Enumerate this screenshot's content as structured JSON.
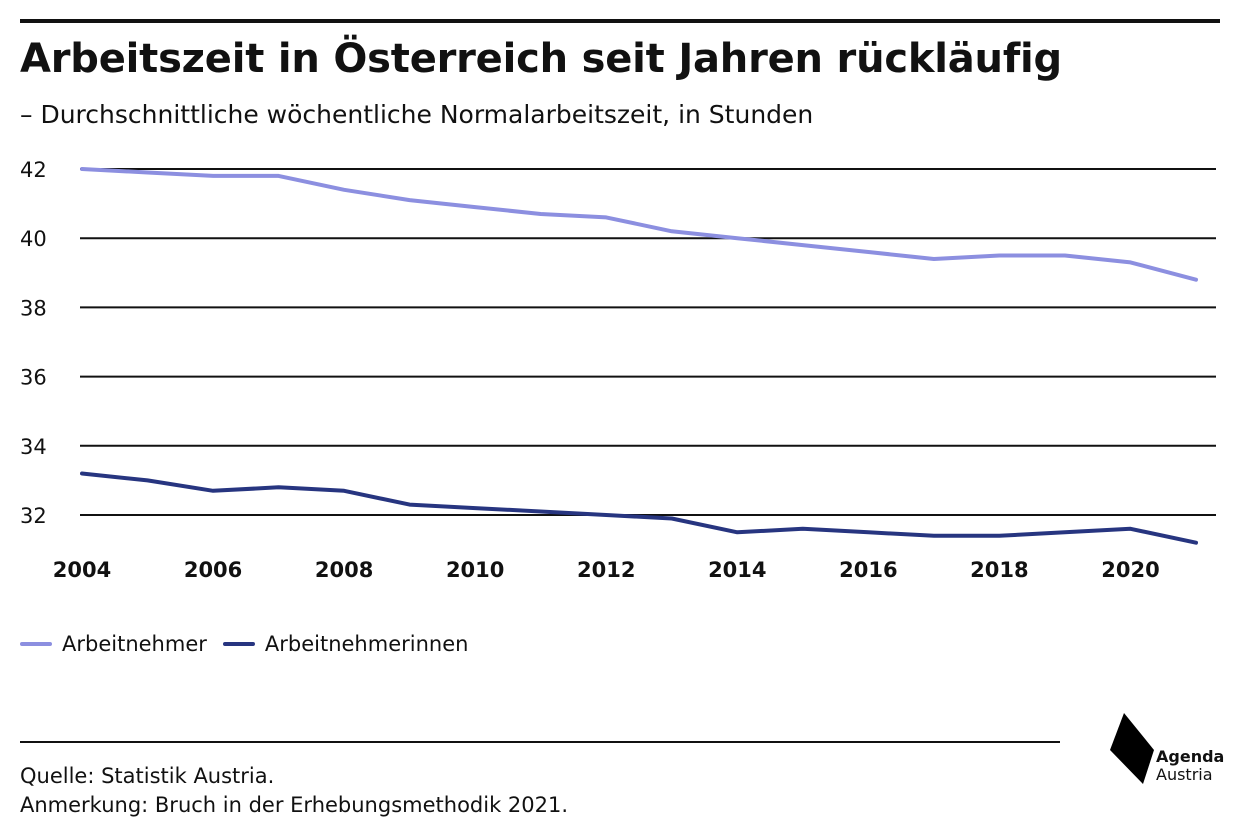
{
  "header": {
    "title": "Arbeitszeit in Österreich seit Jahren rückläufig",
    "subtitle": "– Durchschnittliche wöchentliche Normalarbeitszeit, in Stunden"
  },
  "footer": {
    "source": "Quelle: Statistik Austria.",
    "note": "Anmerkung: Bruch in der Erhebungsmethodik 2021.",
    "logo_line1": "Agenda",
    "logo_line2": "Austria"
  },
  "colors": {
    "accent_light": "#8c8fe0",
    "accent_dark": "#273580",
    "gridline": "#111111",
    "logo": "#000000"
  },
  "chart_data": {
    "type": "line",
    "title": "Arbeitszeit in Österreich seit Jahren rückläufig",
    "subtitle": "– Durchschnittliche wöchentliche Normalarbeitszeit, in Stunden",
    "xlabel": "",
    "ylabel": "",
    "x": [
      2004,
      2005,
      2006,
      2007,
      2008,
      2009,
      2010,
      2011,
      2012,
      2013,
      2014,
      2015,
      2016,
      2017,
      2018,
      2019,
      2020,
      2021
    ],
    "xticks": [
      "2004",
      "2006",
      "2008",
      "2010",
      "2012",
      "2014",
      "2016",
      "2018",
      "2020"
    ],
    "xlim": [
      2004,
      2021
    ],
    "yticks": [
      "32",
      "34",
      "36",
      "38",
      "40",
      "42"
    ],
    "ylim": [
      31,
      42
    ],
    "grid": "horizontal",
    "legend_position": "bottom-left",
    "series": [
      {
        "name": "Arbeitnehmer",
        "color": "#8c8fe0",
        "values": [
          42.0,
          41.9,
          41.8,
          41.8,
          41.4,
          41.1,
          40.9,
          40.7,
          40.6,
          40.2,
          40.0,
          39.8,
          39.6,
          39.4,
          39.5,
          39.5,
          39.3,
          38.8
        ]
      },
      {
        "name": "Arbeitnehmerinnen",
        "color": "#273580",
        "values": [
          33.2,
          33.0,
          32.7,
          32.8,
          32.7,
          32.3,
          32.2,
          32.1,
          32.0,
          31.9,
          31.5,
          31.6,
          31.5,
          31.4,
          31.4,
          31.5,
          31.6,
          31.2
        ]
      }
    ]
  }
}
